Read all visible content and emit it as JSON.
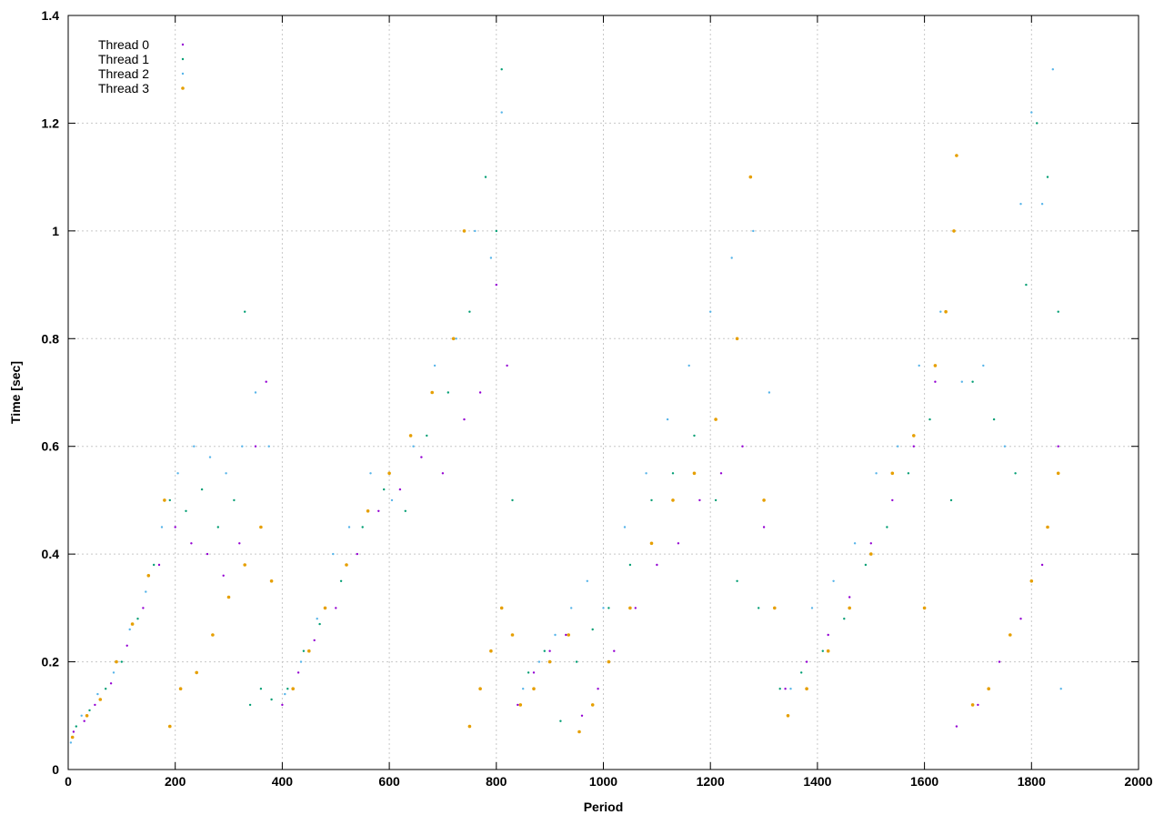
{
  "chart_data": {
    "type": "scatter",
    "title": "",
    "xlabel": "Period",
    "ylabel": "Time [sec]",
    "xlim": [
      0,
      2000
    ],
    "ylim": [
      0,
      1.4
    ],
    "x_ticks": [
      0,
      200,
      400,
      600,
      800,
      1000,
      1200,
      1400,
      1600,
      1800,
      2000
    ],
    "y_ticks": [
      0,
      0.2,
      0.4,
      0.6,
      0.8,
      1,
      1.2,
      1.4
    ],
    "grid": true,
    "legend_position": "top-left",
    "series": [
      {
        "name": "Thread 0",
        "color": "#9400d3",
        "points": [
          [
            10,
            0.07
          ],
          [
            30,
            0.09
          ],
          [
            50,
            0.12
          ],
          [
            80,
            0.16
          ],
          [
            110,
            0.23
          ],
          [
            140,
            0.3
          ],
          [
            170,
            0.38
          ],
          [
            200,
            0.45
          ],
          [
            230,
            0.42
          ],
          [
            260,
            0.4
          ],
          [
            290,
            0.36
          ],
          [
            320,
            0.42
          ],
          [
            350,
            0.6
          ],
          [
            370,
            0.72
          ],
          [
            400,
            0.12
          ],
          [
            430,
            0.18
          ],
          [
            460,
            0.24
          ],
          [
            500,
            0.3
          ],
          [
            540,
            0.4
          ],
          [
            580,
            0.48
          ],
          [
            620,
            0.52
          ],
          [
            660,
            0.58
          ],
          [
            700,
            0.55
          ],
          [
            740,
            0.65
          ],
          [
            770,
            0.7
          ],
          [
            800,
            0.9
          ],
          [
            820,
            0.75
          ],
          [
            840,
            0.12
          ],
          [
            870,
            0.18
          ],
          [
            900,
            0.22
          ],
          [
            930,
            0.25
          ],
          [
            960,
            0.1
          ],
          [
            990,
            0.15
          ],
          [
            1020,
            0.22
          ],
          [
            1060,
            0.3
          ],
          [
            1100,
            0.38
          ],
          [
            1140,
            0.42
          ],
          [
            1180,
            0.5
          ],
          [
            1220,
            0.55
          ],
          [
            1260,
            0.6
          ],
          [
            1300,
            0.45
          ],
          [
            1340,
            0.15
          ],
          [
            1380,
            0.2
          ],
          [
            1420,
            0.25
          ],
          [
            1460,
            0.32
          ],
          [
            1500,
            0.42
          ],
          [
            1540,
            0.5
          ],
          [
            1580,
            0.6
          ],
          [
            1620,
            0.72
          ],
          [
            1660,
            0.08
          ],
          [
            1700,
            0.12
          ],
          [
            1740,
            0.2
          ],
          [
            1780,
            0.28
          ],
          [
            1820,
            0.38
          ],
          [
            1850,
            0.6
          ]
        ]
      },
      {
        "name": "Thread 1",
        "color": "#009e73",
        "points": [
          [
            15,
            0.08
          ],
          [
            40,
            0.11
          ],
          [
            70,
            0.15
          ],
          [
            100,
            0.2
          ],
          [
            130,
            0.28
          ],
          [
            160,
            0.38
          ],
          [
            190,
            0.5
          ],
          [
            220,
            0.48
          ],
          [
            250,
            0.52
          ],
          [
            280,
            0.45
          ],
          [
            310,
            0.5
          ],
          [
            330,
            0.85
          ],
          [
            340,
            0.12
          ],
          [
            360,
            0.15
          ],
          [
            380,
            0.13
          ],
          [
            410,
            0.15
          ],
          [
            440,
            0.22
          ],
          [
            470,
            0.27
          ],
          [
            510,
            0.35
          ],
          [
            550,
            0.45
          ],
          [
            590,
            0.52
          ],
          [
            630,
            0.48
          ],
          [
            670,
            0.62
          ],
          [
            710,
            0.7
          ],
          [
            750,
            0.85
          ],
          [
            780,
            1.1
          ],
          [
            800,
            1.0
          ],
          [
            810,
            1.3
          ],
          [
            830,
            0.5
          ],
          [
            860,
            0.18
          ],
          [
            890,
            0.22
          ],
          [
            920,
            0.09
          ],
          [
            950,
            0.2
          ],
          [
            980,
            0.26
          ],
          [
            1010,
            0.3
          ],
          [
            1050,
            0.38
          ],
          [
            1090,
            0.5
          ],
          [
            1130,
            0.55
          ],
          [
            1170,
            0.62
          ],
          [
            1210,
            0.5
          ],
          [
            1250,
            0.35
          ],
          [
            1290,
            0.3
          ],
          [
            1330,
            0.15
          ],
          [
            1370,
            0.18
          ],
          [
            1410,
            0.22
          ],
          [
            1450,
            0.28
          ],
          [
            1490,
            0.38
          ],
          [
            1530,
            0.45
          ],
          [
            1570,
            0.55
          ],
          [
            1610,
            0.65
          ],
          [
            1650,
            0.5
          ],
          [
            1690,
            0.72
          ],
          [
            1730,
            0.65
          ],
          [
            1770,
            0.55
          ],
          [
            1790,
            0.9
          ],
          [
            1810,
            1.2
          ],
          [
            1830,
            1.1
          ],
          [
            1850,
            0.85
          ]
        ]
      },
      {
        "name": "Thread 2",
        "color": "#56b4e9",
        "points": [
          [
            5,
            0.05
          ],
          [
            25,
            0.1
          ],
          [
            55,
            0.14
          ],
          [
            85,
            0.18
          ],
          [
            115,
            0.26
          ],
          [
            145,
            0.33
          ],
          [
            175,
            0.45
          ],
          [
            205,
            0.55
          ],
          [
            235,
            0.6
          ],
          [
            265,
            0.58
          ],
          [
            295,
            0.55
          ],
          [
            325,
            0.6
          ],
          [
            350,
            0.7
          ],
          [
            375,
            0.6
          ],
          [
            405,
            0.14
          ],
          [
            435,
            0.2
          ],
          [
            465,
            0.28
          ],
          [
            495,
            0.4
          ],
          [
            525,
            0.45
          ],
          [
            565,
            0.55
          ],
          [
            605,
            0.5
          ],
          [
            645,
            0.6
          ],
          [
            685,
            0.75
          ],
          [
            725,
            0.8
          ],
          [
            760,
            1.0
          ],
          [
            790,
            0.95
          ],
          [
            810,
            1.22
          ],
          [
            850,
            0.15
          ],
          [
            880,
            0.2
          ],
          [
            910,
            0.25
          ],
          [
            940,
            0.3
          ],
          [
            970,
            0.35
          ],
          [
            1000,
            0.3
          ],
          [
            1040,
            0.45
          ],
          [
            1080,
            0.55
          ],
          [
            1120,
            0.65
          ],
          [
            1160,
            0.75
          ],
          [
            1200,
            0.85
          ],
          [
            1240,
            0.95
          ],
          [
            1280,
            1.0
          ],
          [
            1310,
            0.7
          ],
          [
            1350,
            0.15
          ],
          [
            1390,
            0.3
          ],
          [
            1430,
            0.35
          ],
          [
            1470,
            0.42
          ],
          [
            1510,
            0.55
          ],
          [
            1550,
            0.6
          ],
          [
            1590,
            0.75
          ],
          [
            1630,
            0.85
          ],
          [
            1670,
            0.72
          ],
          [
            1710,
            0.75
          ],
          [
            1750,
            0.6
          ],
          [
            1780,
            1.05
          ],
          [
            1800,
            1.22
          ],
          [
            1820,
            1.05
          ],
          [
            1840,
            1.3
          ],
          [
            1855,
            0.15
          ]
        ]
      },
      {
        "name": "Thread 3",
        "color": "#e69f00",
        "points": [
          [
            8,
            0.06
          ],
          [
            35,
            0.1
          ],
          [
            60,
            0.13
          ],
          [
            90,
            0.2
          ],
          [
            120,
            0.27
          ],
          [
            150,
            0.36
          ],
          [
            180,
            0.5
          ],
          [
            190,
            0.08
          ],
          [
            210,
            0.15
          ],
          [
            240,
            0.18
          ],
          [
            270,
            0.25
          ],
          [
            300,
            0.32
          ],
          [
            330,
            0.38
          ],
          [
            360,
            0.45
          ],
          [
            380,
            0.35
          ],
          [
            420,
            0.15
          ],
          [
            450,
            0.22
          ],
          [
            480,
            0.3
          ],
          [
            520,
            0.38
          ],
          [
            560,
            0.48
          ],
          [
            600,
            0.55
          ],
          [
            640,
            0.62
          ],
          [
            680,
            0.7
          ],
          [
            720,
            0.8
          ],
          [
            740,
            1.0
          ],
          [
            750,
            0.08
          ],
          [
            770,
            0.15
          ],
          [
            790,
            0.22
          ],
          [
            810,
            0.3
          ],
          [
            830,
            0.25
          ],
          [
            845,
            0.12
          ],
          [
            870,
            0.15
          ],
          [
            900,
            0.2
          ],
          [
            935,
            0.25
          ],
          [
            955,
            0.07
          ],
          [
            980,
            0.12
          ],
          [
            1010,
            0.2
          ],
          [
            1050,
            0.3
          ],
          [
            1090,
            0.42
          ],
          [
            1130,
            0.5
          ],
          [
            1170,
            0.55
          ],
          [
            1210,
            0.65
          ],
          [
            1250,
            0.8
          ],
          [
            1275,
            1.1
          ],
          [
            1300,
            0.5
          ],
          [
            1320,
            0.3
          ],
          [
            1345,
            0.1
          ],
          [
            1380,
            0.15
          ],
          [
            1420,
            0.22
          ],
          [
            1460,
            0.3
          ],
          [
            1500,
            0.4
          ],
          [
            1540,
            0.55
          ],
          [
            1580,
            0.62
          ],
          [
            1600,
            0.3
          ],
          [
            1620,
            0.75
          ],
          [
            1640,
            0.85
          ],
          [
            1655,
            1.0
          ],
          [
            1660,
            1.14
          ],
          [
            1690,
            0.12
          ],
          [
            1720,
            0.15
          ],
          [
            1760,
            0.25
          ],
          [
            1800,
            0.35
          ],
          [
            1830,
            0.45
          ],
          [
            1850,
            0.55
          ]
        ]
      }
    ]
  }
}
